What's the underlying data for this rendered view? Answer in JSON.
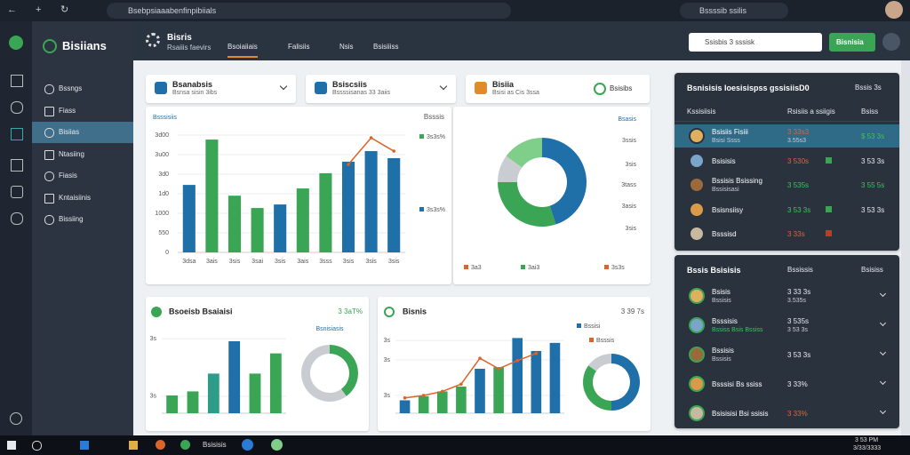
{
  "browser": {
    "address": "Bsebpsiaaabenfinpibiials",
    "account": "Bssssib ssilis"
  },
  "sidebar": {
    "brand": "Bisiians",
    "active": 2,
    "items": [
      "Bssngs",
      "Fiass",
      "Bisiias",
      "Ntasiing",
      "Fiasis",
      "Kntaisiinis",
      "Bissiing"
    ]
  },
  "header": {
    "title": "Bisris",
    "subtitle": "Rsaiiis faevirs",
    "active_tab": 0,
    "tabs": [
      "Bsoiaiiais",
      "Falisiis",
      "Nsis",
      "Bsisiiiss"
    ],
    "search": "Ssisbis 3 sssisk",
    "button": "Bisnisia"
  },
  "filters": [
    {
      "title": "Bsanabsis",
      "note": "Bsnsa sisin 3ibs"
    },
    {
      "title": "Bsiscsiis",
      "note": "Bssssisanas 33 3aiis"
    },
    {
      "title": "Bisiia",
      "note": "Bsisi as Cis 3ssa",
      "select": "Bsisibs"
    }
  ],
  "chart_data": [
    {
      "type": "bar",
      "title": "Bsssisiis",
      "note": "Bsssis",
      "categories": [
        "3dsa",
        "3ais",
        "3sis",
        "3sai",
        "3sis",
        "3ais",
        "3sss",
        "3sis",
        "3sis",
        "3sis"
      ],
      "values": [
        3.45,
        5.77,
        2.9,
        2.27,
        2.45,
        3.27,
        4.05,
        4.64,
        5.18,
        4.82
      ],
      "colors": [
        "#1f6fa8",
        "#3aa655",
        "#3aa655",
        "#3aa655",
        "#1f6fa8",
        "#3aa655",
        "#3aa655",
        "#1f6fa8",
        "#1f6fa8",
        "#1f6fa8"
      ],
      "line": {
        "color": "#d9652b",
        "values": [
          null,
          null,
          null,
          null,
          null,
          null,
          null,
          4.5,
          5.86,
          5.18
        ]
      },
      "ylim": [
        0,
        7
      ],
      "yticks": [
        0,
        {
          "value": 1,
          "label": "550"
        },
        {
          "value": 2,
          "label": "1000"
        },
        {
          "value": 3,
          "label": "1d0"
        },
        {
          "value": 4,
          "label": "3d0"
        },
        {
          "value": 5,
          "label": "3u00"
        },
        {
          "value": 6,
          "label": "3d00"
        }
      ],
      "legend": [
        {
          "label": "3s3s%",
          "color": "#3aa655"
        },
        {
          "label": "3s3s%",
          "color": "#1f6fa8"
        }
      ]
    },
    {
      "type": "donut",
      "title": "Bsasis",
      "values": [
        45,
        30,
        10,
        15
      ],
      "colors": [
        "#1f6fa8",
        "#3aa655",
        "#c9cdd2",
        "#7fcf8a"
      ],
      "side_labels": [
        "3ssis",
        "3sis",
        "3tass",
        "3asis",
        "3sis"
      ],
      "legend": [
        {
          "label": "3a3",
          "color": "#d9652b"
        },
        {
          "label": "3ai3",
          "color": "#3aa655"
        },
        {
          "label": "3s3s",
          "color": "#d9652b"
        }
      ]
    },
    {
      "type": "bar",
      "title": "Bsoeisb Bsaiaisi",
      "note": "3 3aT%",
      "values": [
        22,
        27,
        49,
        89,
        49,
        74
      ],
      "colors": [
        "#3aa655",
        "#3aa655",
        "#2f9c8a",
        "#1f6fa8",
        "#3aa655",
        "#3aa655"
      ],
      "ylim": [
        0,
        100
      ],
      "yticks": [
        {
          "value": 21,
          "label": "3s"
        },
        {
          "value": 92,
          "label": "3s"
        }
      ]
    },
    {
      "type": "donut",
      "title": "Bsnisiasis",
      "values": [
        40,
        60
      ],
      "colors": [
        "#3aa655",
        "#c9cdd2"
      ]
    },
    {
      "type": "bar",
      "title": "Bisnis",
      "note": "3 39 7s",
      "values": [
        16,
        21,
        27,
        33,
        55,
        57,
        93,
        77,
        87
      ],
      "colors": [
        "#1f6fa8",
        "#3aa655",
        "#3aa655",
        "#3aa655",
        "#1f6fa8",
        "#3aa655",
        "#1f6fa8",
        "#1f6fa8",
        "#1f6fa8"
      ],
      "line": {
        "color": "#d9652b",
        "values": [
          19,
          22,
          27,
          36,
          68,
          55,
          65,
          74,
          null
        ]
      },
      "ylim": [
        0,
        100
      ],
      "yticks": [
        {
          "value": 22,
          "label": "3s"
        },
        {
          "value": 66,
          "label": "3s"
        },
        {
          "value": 90,
          "label": "3s"
        }
      ],
      "legend": [
        {
          "label": "Bssisi",
          "color": "#1f6fa8"
        },
        {
          "label": "Bsssis",
          "color": "#d9652b"
        }
      ]
    },
    {
      "type": "donut",
      "values": [
        50,
        35,
        15
      ],
      "colors": [
        "#1f6fa8",
        "#3aa655",
        "#c9cdd2"
      ]
    }
  ],
  "tables": [
    {
      "title": "Bsnisisis Ioesisispss gssisiisD0",
      "note": "Bssis 3s",
      "active": 0,
      "columns": [
        "Kssisiisis",
        "Rsisiis a ssiigis",
        "Bsiss"
      ],
      "rows": [
        {
          "name": "Bsisiis Fisiii",
          "sub": "Bsisi Ssss",
          "value": "3 33s3",
          "value_sub": "3.55s3",
          "right": "$ 53 3s",
          "value_color": "#e0623a",
          "right_color": "#3fc25a"
        },
        {
          "name": "Bsisisis",
          "value": "3 530s",
          "marker": "#3aa655",
          "right": "3 53 3s",
          "value_color": "#e0623a",
          "right_color": "#e6e9ee"
        },
        {
          "name": "Bssisis Bsissing",
          "sub": "Bssisisasi",
          "value": "3 535s",
          "right": "3 55 5s",
          "value_color": "#3fc25a",
          "right_color": "#3fc25a"
        },
        {
          "name": "Bsisnsiisy",
          "value": "3 53 3s",
          "marker": "#3aa655",
          "right": "3 53 3s",
          "value_color": "#3fc25a",
          "right_color": "#e6e9ee"
        },
        {
          "name": "Bsssisd",
          "value": "3 33s",
          "marker": "#c0392b",
          "value_color": "#e0623a"
        }
      ]
    },
    {
      "title": "Bssis Bsisisis",
      "columns": [
        "Bssissis",
        "Bsisiss"
      ],
      "rows": [
        {
          "name": "Bsisis",
          "sub": "Bssisis",
          "value": "3 33 3s",
          "value_sub": "3.535s",
          "value_color": "#e6e9ee"
        },
        {
          "name": "Bsssisis",
          "sub": "Bssiss Bsis Bssiss",
          "value": "3 535s",
          "value_sub": "3 53 3s",
          "value_color": "#e6e9ee",
          "sub_color": "#3fc25a"
        },
        {
          "name": "Bssisis",
          "sub": "Bssisis",
          "value": "3 53 3s",
          "value_color": "#e6e9ee"
        },
        {
          "name": "Bsssisi Bs ssiss",
          "value": "3 33%",
          "value_color": "#e6e9ee"
        },
        {
          "name": "Bsisisisi Bsi ssisis",
          "value": "3 33%",
          "value_color": "#e0623a"
        }
      ]
    }
  ],
  "taskbar": {
    "app": "Bsisisis",
    "time": "3 53 PM",
    "date": "3/33/3333"
  }
}
